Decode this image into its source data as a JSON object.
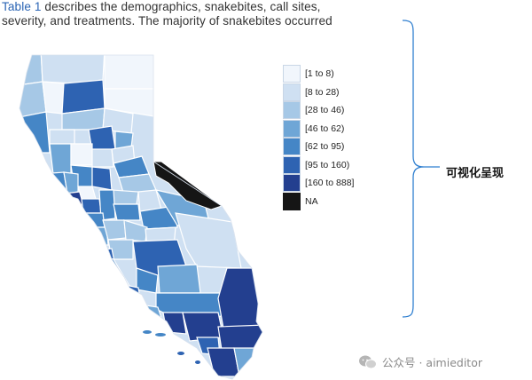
{
  "document": {
    "line1_ref": "Table 1",
    "line1_rest": " describes the demographics, snakebites, call sites,",
    "line2": "severity, and treatments. The majority of snakebites occurred"
  },
  "legend": {
    "items": [
      {
        "label": "[1 to 8)",
        "color": "#f1f6fc"
      },
      {
        "label": "[8 to 28)",
        "color": "#cfe0f2"
      },
      {
        "label": "[28 to 46)",
        "color": "#a6c8e6"
      },
      {
        "label": "[46 to 62)",
        "color": "#6fa6d6"
      },
      {
        "label": "[62 to 95)",
        "color": "#4586c6"
      },
      {
        "label": "[95 to 160)",
        "color": "#2e63b2"
      },
      {
        "label": "[160 to 888]",
        "color": "#233f8f"
      },
      {
        "label": "NA",
        "color": "#151515"
      }
    ]
  },
  "annotation": {
    "label": "可视化呈现"
  },
  "watermark": {
    "label": "公众号 · aimieditor"
  },
  "colors": {
    "bracket": "#2f7fd0",
    "border": "#ffffff"
  }
}
